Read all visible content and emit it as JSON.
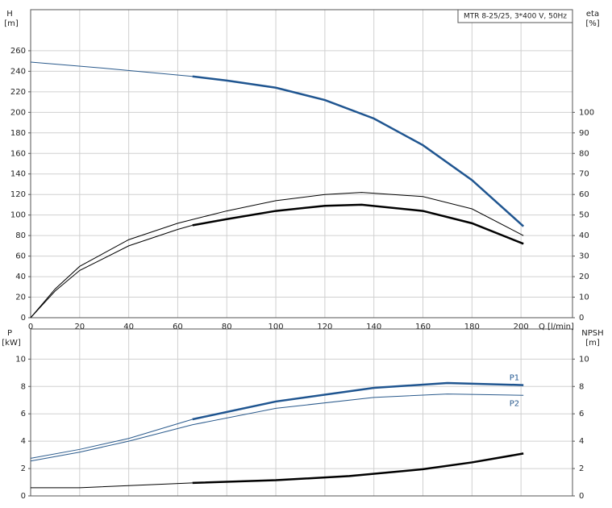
{
  "chart_data": [
    {
      "type": "line",
      "note_box": "MTR 8-25/25, 3*400 V, 50Hz",
      "ylabel": "H",
      "yunit": "[m]",
      "y2label": "eta",
      "y2unit": "[%]",
      "xlabel": "Q [l/min]",
      "xlim": [
        0,
        221
      ],
      "xticks": [
        0,
        20,
        40,
        60,
        80,
        100,
        120,
        140,
        160,
        180,
        200
      ],
      "ylim": [
        0,
        300
      ],
      "yticks": [
        0,
        20,
        40,
        60,
        80,
        100,
        120,
        140,
        160,
        180,
        200,
        220,
        240,
        260
      ],
      "y2lim": [
        0,
        150
      ],
      "y2ticks": [
        0,
        10,
        20,
        30,
        40,
        50,
        60,
        70,
        80,
        90,
        100
      ],
      "grid": true,
      "series": [
        {
          "color": "#2a5a8c",
          "width": 1,
          "x": [
            0,
            30,
            66
          ],
          "values": [
            249,
            243,
            235
          ]
        },
        {
          "color": "#1f5590",
          "width": 2.5,
          "x": [
            66,
            80,
            100,
            120,
            140,
            160,
            180,
            201
          ],
          "values": [
            235,
            231,
            224,
            212,
            194,
            168,
            134,
            89
          ]
        },
        {
          "color": "#000000",
          "width": 1,
          "axis": "y2",
          "x": [
            0,
            10,
            20,
            40,
            60,
            80,
            100,
            120,
            135,
            160,
            180,
            201
          ],
          "values": [
            0,
            14,
            25,
            38,
            46,
            52,
            57,
            60,
            61,
            59,
            53,
            40
          ]
        },
        {
          "color": "#000000",
          "width": 1,
          "axis": "y2",
          "x": [
            0,
            10,
            20,
            40,
            60,
            66
          ],
          "values": [
            0,
            13,
            23,
            35,
            43,
            45
          ]
        },
        {
          "color": "#000000",
          "width": 2.5,
          "axis": "y2",
          "x": [
            66,
            80,
            100,
            120,
            135,
            160,
            180,
            201
          ],
          "values": [
            45,
            48,
            52,
            54.5,
            55,
            52,
            46,
            36
          ]
        }
      ]
    },
    {
      "type": "line",
      "ylabel": "P",
      "yunit": "[kW]",
      "y2label": "NPSH",
      "y2unit": "[m]",
      "xlim": [
        0,
        221
      ],
      "xticks": [
        0,
        20,
        40,
        60,
        80,
        100,
        120,
        140,
        160,
        180,
        200
      ],
      "ylim": [
        0,
        12.2
      ],
      "yticks": [
        0,
        2,
        4,
        6,
        8,
        10
      ],
      "y2lim": [
        0,
        12.2
      ],
      "y2ticks": [
        0,
        2,
        4,
        6,
        8,
        10
      ],
      "grid": true,
      "series": [
        {
          "color": "#2a5a8c",
          "width": 1,
          "x": [
            0,
            20,
            40,
            66
          ],
          "values": [
            2.75,
            3.4,
            4.2,
            5.6
          ]
        },
        {
          "name": "P1",
          "color": "#1f5590",
          "width": 2.5,
          "x": [
            66,
            100,
            140,
            170,
            201
          ],
          "values": [
            5.6,
            6.9,
            7.9,
            8.25,
            8.1
          ]
        },
        {
          "name": "P2",
          "color": "#2a5a8c",
          "width": 1,
          "x": [
            0,
            20,
            40,
            66,
            100,
            140,
            170,
            201
          ],
          "values": [
            2.55,
            3.2,
            4.0,
            5.2,
            6.4,
            7.2,
            7.45,
            7.35
          ]
        },
        {
          "color": "#000000",
          "width": 1,
          "axis": "y2",
          "x": [
            0,
            20,
            40,
            66
          ],
          "values": [
            0.6,
            0.6,
            0.75,
            0.95
          ]
        },
        {
          "color": "#000000",
          "width": 2.5,
          "axis": "y2",
          "x": [
            66,
            100,
            130,
            160,
            180,
            201
          ],
          "values": [
            0.95,
            1.15,
            1.45,
            1.95,
            2.45,
            3.1
          ]
        }
      ]
    }
  ]
}
